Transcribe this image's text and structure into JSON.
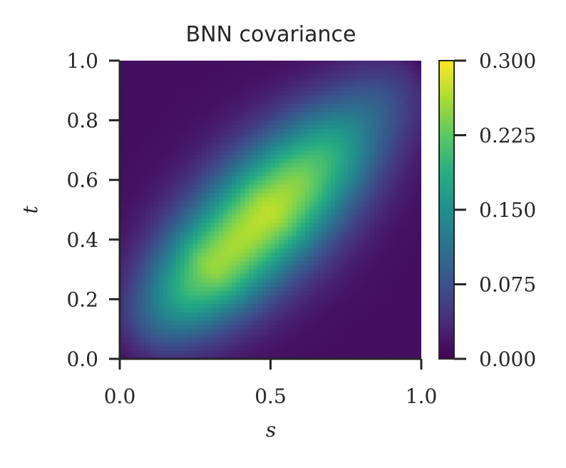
{
  "chart_data": [
    {
      "type": "heatmap",
      "title": "BNN covariance",
      "xlabel": "s",
      "ylabel": "t",
      "xlim": [
        0.0,
        1.0
      ],
      "ylim": [
        0.0,
        1.0
      ],
      "x_ticks": [
        "0.0",
        "0.5",
        "1.0"
      ],
      "y_ticks": [
        "0.0",
        "0.2",
        "0.4",
        "0.6",
        "0.8",
        "1.0"
      ],
      "grid": false,
      "colormap": "viridis",
      "description_of_field": "Covariance k(s,t) is largest along the diagonal s = t, peaking near s = t ≈ 0.5, and decays toward the corners and off-diagonal regions.",
      "peak": {
        "s": 0.5,
        "t": 0.5,
        "value": 0.26
      },
      "values_along_diagonal": [
        {
          "s": 0.05,
          "value": 0.03
        },
        {
          "s": 0.2,
          "value": 0.17
        },
        {
          "s": 0.3,
          "value": 0.24
        },
        {
          "s": 0.4,
          "value": 0.25
        },
        {
          "s": 0.5,
          "value": 0.26
        },
        {
          "s": 0.6,
          "value": 0.23
        },
        {
          "s": 0.7,
          "value": 0.18
        },
        {
          "s": 0.8,
          "value": 0.11
        },
        {
          "s": 0.95,
          "value": 0.03
        }
      ],
      "colorbar": {
        "vmin": 0.0,
        "vmax": 0.3,
        "ticks": [
          "0.000",
          "0.075",
          "0.150",
          "0.225",
          "0.300"
        ],
        "tick_values": [
          0.0,
          0.075,
          0.15,
          0.225,
          0.3
        ]
      },
      "colors": {
        "viridis_low": "#440154",
        "viridis_mid": "#21918c",
        "viridis_high": "#fde725",
        "axis": "#262626"
      }
    }
  ]
}
